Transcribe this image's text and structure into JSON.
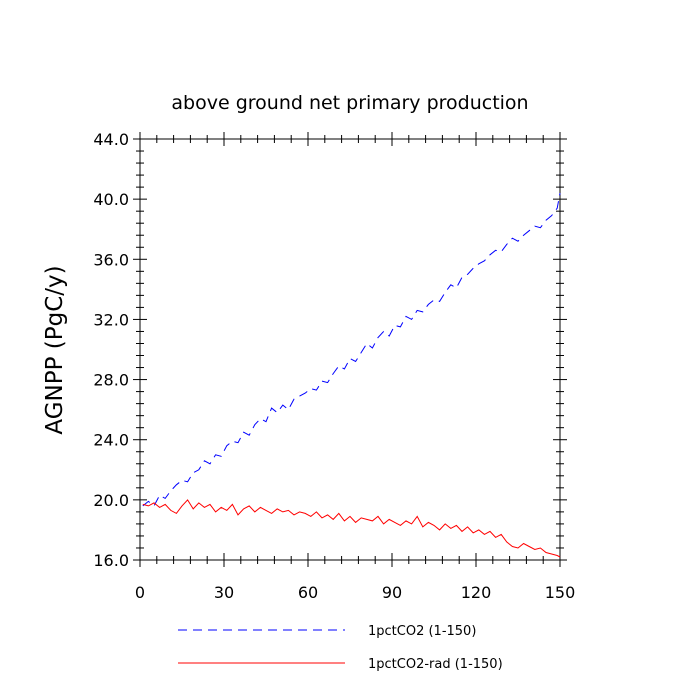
{
  "chart_data": {
    "type": "line",
    "title": "above ground net primary production",
    "xlabel": "",
    "ylabel": "AGNPP  (PgC/y)",
    "xlim": [
      0,
      150
    ],
    "ylim": [
      16,
      44
    ],
    "xticks": [
      0,
      30,
      60,
      90,
      120,
      150
    ],
    "xtick_labels": [
      "0",
      "30",
      "60",
      "90",
      "120",
      "150"
    ],
    "yticks": [
      16,
      20,
      24,
      28,
      32,
      36,
      40,
      44
    ],
    "ytick_labels": [
      "16.0",
      "20.0",
      "24.0",
      "28.0",
      "32.0",
      "36.0",
      "40.0",
      "44.0"
    ],
    "grid": false,
    "legend_position": "bottom",
    "x": [
      1,
      3,
      5,
      7,
      9,
      11,
      13,
      15,
      17,
      19,
      21,
      23,
      25,
      27,
      29,
      31,
      33,
      35,
      37,
      39,
      41,
      43,
      45,
      47,
      49,
      51,
      53,
      55,
      57,
      59,
      61,
      63,
      65,
      67,
      69,
      71,
      73,
      75,
      77,
      79,
      81,
      83,
      85,
      87,
      89,
      91,
      93,
      95,
      97,
      99,
      101,
      103,
      105,
      107,
      109,
      111,
      113,
      115,
      117,
      119,
      121,
      123,
      125,
      127,
      129,
      131,
      133,
      135,
      137,
      139,
      141,
      143,
      145,
      147,
      149,
      150
    ],
    "series": [
      {
        "name": "1pctCO2 (1-150)",
        "color": "#0000ff",
        "style": "dashed",
        "values": [
          19.6,
          19.9,
          19.6,
          20.3,
          20.1,
          20.6,
          21.0,
          21.3,
          21.2,
          21.8,
          22.0,
          22.6,
          22.4,
          23.0,
          22.9,
          23.6,
          23.9,
          23.8,
          24.5,
          24.3,
          25.0,
          25.4,
          25.2,
          26.1,
          25.8,
          26.3,
          26.0,
          26.7,
          26.9,
          27.1,
          27.4,
          27.3,
          27.9,
          27.8,
          28.4,
          28.9,
          28.7,
          29.4,
          29.2,
          29.8,
          30.4,
          30.1,
          30.8,
          31.2,
          30.9,
          31.6,
          31.5,
          32.2,
          32.0,
          32.6,
          32.5,
          33.0,
          33.3,
          33.2,
          33.8,
          34.3,
          34.1,
          34.8,
          35.0,
          35.4,
          35.7,
          35.9,
          36.3,
          36.6,
          36.5,
          37.0,
          37.4,
          37.2,
          37.6,
          37.9,
          38.2,
          38.1,
          38.6,
          38.9,
          39.4,
          40.4
        ]
      },
      {
        "name": "1pctCO2-rad (1-150)",
        "color": "#ff0000",
        "style": "solid",
        "values": [
          19.7,
          19.6,
          19.8,
          19.5,
          19.7,
          19.3,
          19.1,
          19.6,
          20.0,
          19.4,
          19.8,
          19.5,
          19.7,
          19.2,
          19.5,
          19.3,
          19.7,
          19.0,
          19.4,
          19.6,
          19.2,
          19.5,
          19.3,
          19.1,
          19.4,
          19.2,
          19.3,
          19.0,
          19.2,
          19.1,
          18.9,
          19.2,
          18.8,
          19.0,
          18.7,
          19.1,
          18.6,
          18.9,
          18.5,
          18.8,
          18.7,
          18.6,
          18.9,
          18.4,
          18.7,
          18.5,
          18.3,
          18.6,
          18.4,
          18.9,
          18.2,
          18.5,
          18.3,
          18.0,
          18.4,
          18.1,
          18.3,
          17.9,
          18.2,
          17.8,
          18.0,
          17.7,
          17.9,
          17.5,
          17.7,
          17.2,
          16.9,
          16.8,
          17.1,
          16.9,
          16.7,
          16.8,
          16.5,
          16.4,
          16.3,
          16.2
        ]
      }
    ]
  }
}
